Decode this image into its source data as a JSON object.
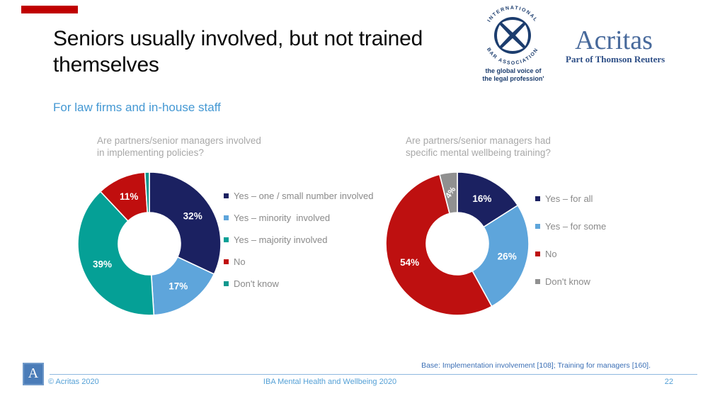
{
  "slide": {
    "title_lines": [
      "Seniors usually involved, but not trained",
      "themselves"
    ],
    "subtitle": "For law firms and in-house staff",
    "accent_color": "#c00000",
    "subtitle_color": "#4498d3"
  },
  "logos": {
    "iba": {
      "arc_text_top": "INTERNATIONAL",
      "arc_text_bottom": "BAR ASSOCIATION",
      "tagline_line1": "the global voice of",
      "tagline_line2": "the legal profession'",
      "color": "#1c3d6e"
    },
    "acritas": {
      "wordmark": "Acritas",
      "subbrand": "Part of Thomson Reuters",
      "wordmark_color": "#47699b",
      "subbrand_color": "#2d4e86"
    }
  },
  "chart_data": [
    {
      "type": "pie",
      "subtype": "donut",
      "title_lines": [
        "Are partners/senior managers involved",
        "in implementing policies?"
      ],
      "categories": [
        "Yes – one / small number involved",
        "Yes – minority  involved",
        "Yes – majority involved",
        "No",
        "Don't know"
      ],
      "values": [
        32,
        17,
        39,
        11,
        1
      ],
      "colors": [
        "#1b2161",
        "#5ea5db",
        "#05a096",
        "#c00e0e",
        "#12988e"
      ],
      "data_labels": [
        "32%",
        "17%",
        "39%",
        "11%",
        ""
      ],
      "legend_position": "right",
      "start_angle": "top",
      "direction": "clockwise"
    },
    {
      "type": "pie",
      "subtype": "donut",
      "title_lines": [
        "Are partners/senior managers had",
        "specific mental wellbeing training?"
      ],
      "categories": [
        "Yes – for all",
        "Yes – for some",
        "No",
        "Don't know"
      ],
      "values": [
        16,
        26,
        54,
        4
      ],
      "colors": [
        "#1b2161",
        "#5ea5db",
        "#be1010",
        "#909090"
      ],
      "data_labels": [
        "16%",
        "26%",
        "54%",
        "4%"
      ],
      "legend_position": "right",
      "start_angle": "top",
      "direction": "clockwise"
    }
  ],
  "footer": {
    "base_note": "Base: Implementation involvement [108]; Training for managers [160].",
    "base_note_color": "#3b6fb5",
    "copyright": "© Acritas 2020",
    "center_text": "IBA Mental Health and Wellbeing 2020",
    "page_number": "22",
    "logo_letter": "A",
    "text_color": "#54a0d6"
  }
}
